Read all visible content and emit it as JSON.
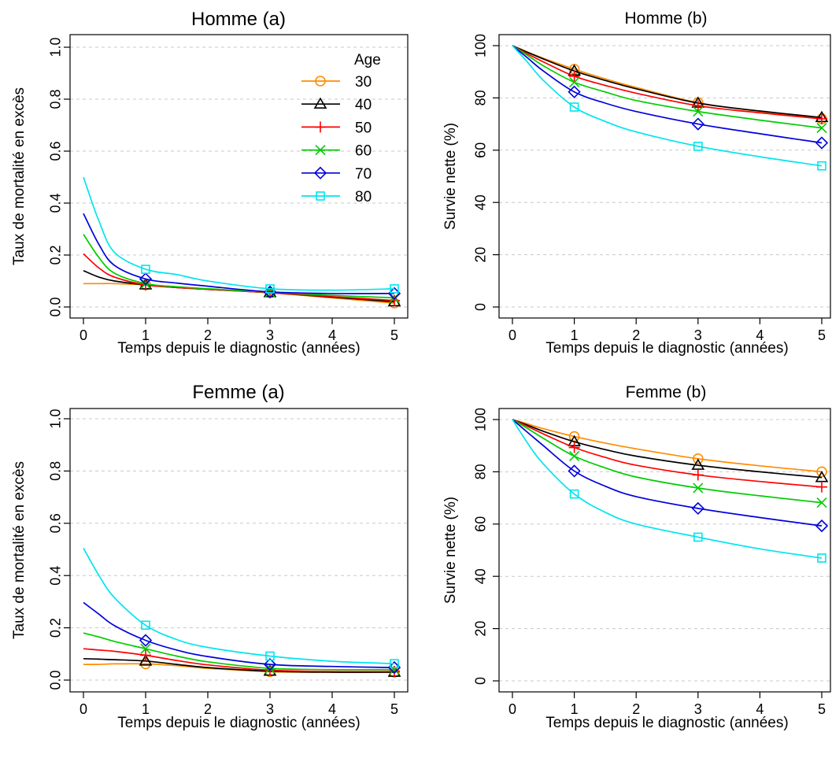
{
  "figure": {
    "legend_title": "Age",
    "legend_placement": "top-right of first panel"
  },
  "series_colors": {
    "30": "#FF8C00",
    "40": "#000000",
    "50": "#FF0000",
    "60": "#00CC00",
    "70": "#0000DD",
    "80": "#00E5EE"
  },
  "series_markers": {
    "30": "circle",
    "40": "triangle",
    "50": "plus",
    "60": "cross",
    "70": "diamond",
    "80": "square"
  },
  "chart_data": [
    {
      "type": "line",
      "title": "Homme (a)",
      "xlabel": "Temps depuis le diagnostic (années)",
      "ylabel": "Taux de mortalité en excès",
      "xlim": [
        0,
        5
      ],
      "ylim": [
        0,
        1
      ],
      "xticks": [
        "0",
        "1",
        "2",
        "3",
        "4",
        "5"
      ],
      "yticks": [
        "0.0",
        "0.2",
        "0.4",
        "0.6",
        "0.8",
        "1.0"
      ],
      "ytick_values": [
        0,
        0.2,
        0.4,
        0.6,
        0.8,
        1.0
      ],
      "grid": "horizontal dashed",
      "legend": true,
      "marker_x": [
        1,
        3,
        5
      ],
      "series": [
        {
          "name": "30",
          "x": [
            0,
            0.25,
            0.5,
            1,
            1.5,
            2,
            3,
            4,
            5
          ],
          "values": [
            0.09,
            0.09,
            0.09,
            0.085,
            0.078,
            0.07,
            0.055,
            0.035,
            0.015
          ]
        },
        {
          "name": "40",
          "x": [
            0,
            0.25,
            0.5,
            1,
            1.5,
            2,
            3,
            4,
            5
          ],
          "values": [
            0.14,
            0.115,
            0.1,
            0.085,
            0.075,
            0.068,
            0.055,
            0.038,
            0.02
          ]
        },
        {
          "name": "50",
          "x": [
            0,
            0.25,
            0.5,
            1,
            1.5,
            2,
            3,
            4,
            5
          ],
          "values": [
            0.205,
            0.15,
            0.115,
            0.085,
            0.075,
            0.068,
            0.055,
            0.04,
            0.025
          ]
        },
        {
          "name": "60",
          "x": [
            0,
            0.25,
            0.5,
            1,
            1.5,
            2,
            3,
            4,
            5
          ],
          "values": [
            0.28,
            0.19,
            0.13,
            0.09,
            0.078,
            0.07,
            0.057,
            0.045,
            0.035
          ]
        },
        {
          "name": "70",
          "x": [
            0,
            0.25,
            0.5,
            1,
            1.5,
            2,
            3,
            4,
            5
          ],
          "values": [
            0.36,
            0.24,
            0.16,
            0.108,
            0.092,
            0.08,
            0.058,
            0.052,
            0.052
          ]
        },
        {
          "name": "80",
          "x": [
            0,
            0.25,
            0.5,
            1,
            1.5,
            2,
            3,
            4,
            5
          ],
          "values": [
            0.5,
            0.33,
            0.21,
            0.145,
            0.125,
            0.1,
            0.07,
            0.065,
            0.07
          ]
        }
      ]
    },
    {
      "type": "line",
      "title": "Homme  (b)",
      "xlabel": "Temps depuis le diagnostic (années)",
      "ylabel": "Survie nette (%)",
      "xlim": [
        0,
        5
      ],
      "ylim": [
        0,
        100
      ],
      "xticks": [
        "0",
        "1",
        "2",
        "3",
        "4",
        "5"
      ],
      "yticks": [
        "0",
        "20",
        "40",
        "60",
        "80",
        "100"
      ],
      "ytick_values": [
        0,
        20,
        40,
        60,
        80,
        100
      ],
      "grid": "horizontal dashed",
      "legend": false,
      "marker_x": [
        1,
        3,
        5
      ],
      "series": [
        {
          "name": "30",
          "x": [
            0,
            0.25,
            0.5,
            1,
            1.5,
            2,
            3,
            4,
            5
          ],
          "values": [
            100,
            97.5,
            95.2,
            91,
            87.3,
            84,
            78.2,
            74.8,
            72
          ]
        },
        {
          "name": "40",
          "x": [
            0,
            0.25,
            0.5,
            1,
            1.5,
            2,
            3,
            4,
            5
          ],
          "values": [
            100,
            97.4,
            94.9,
            90.3,
            86.7,
            83.5,
            78,
            75,
            72.5
          ]
        },
        {
          "name": "50",
          "x": [
            0,
            0.25,
            0.5,
            1,
            1.5,
            2,
            3,
            4,
            5
          ],
          "values": [
            100,
            96.8,
            93.8,
            88.3,
            84.8,
            81.8,
            77,
            74.3,
            72
          ]
        },
        {
          "name": "60",
          "x": [
            0,
            0.25,
            0.5,
            1,
            1.5,
            2,
            3,
            4,
            5
          ],
          "values": [
            100,
            96.2,
            92.3,
            86,
            82.3,
            79,
            74.8,
            71.5,
            68.5
          ]
        },
        {
          "name": "70",
          "x": [
            0,
            0.25,
            0.5,
            1,
            1.5,
            2,
            3,
            4,
            5
          ],
          "values": [
            100,
            95.2,
            90.3,
            82.3,
            78,
            74.8,
            70,
            66.3,
            62.8
          ]
        },
        {
          "name": "80",
          "x": [
            0,
            0.25,
            0.5,
            1,
            1.5,
            2,
            3,
            4,
            5
          ],
          "values": [
            100,
            93.5,
            86.7,
            76.5,
            71,
            67,
            61.5,
            57.5,
            54
          ]
        }
      ]
    },
    {
      "type": "line",
      "title": "Femme (a)",
      "xlabel": "Temps depuis le diagnostic (années)",
      "ylabel": "Taux de mortalité en excès",
      "xlim": [
        0,
        5
      ],
      "ylim": [
        0,
        1
      ],
      "xticks": [
        "0",
        "1",
        "2",
        "3",
        "4",
        "5"
      ],
      "yticks": [
        "0.0",
        "0.2",
        "0.4",
        "0.6",
        "0.8",
        "1.0"
      ],
      "ytick_values": [
        0,
        0.2,
        0.4,
        0.6,
        0.8,
        1.0
      ],
      "grid": "horizontal dashed",
      "legend": false,
      "marker_x": [
        1,
        3,
        5
      ],
      "series": [
        {
          "name": "30",
          "x": [
            0,
            0.25,
            0.5,
            1,
            1.5,
            2,
            3,
            4,
            5
          ],
          "values": [
            0.06,
            0.06,
            0.062,
            0.062,
            0.055,
            0.045,
            0.032,
            0.03,
            0.03
          ]
        },
        {
          "name": "40",
          "x": [
            0,
            0.25,
            0.5,
            1,
            1.5,
            2,
            3,
            4,
            5
          ],
          "values": [
            0.082,
            0.08,
            0.078,
            0.073,
            0.06,
            0.048,
            0.034,
            0.03,
            0.03
          ]
        },
        {
          "name": "50",
          "x": [
            0,
            0.25,
            0.5,
            1,
            1.5,
            2,
            3,
            4,
            5
          ],
          "values": [
            0.12,
            0.115,
            0.11,
            0.095,
            0.075,
            0.058,
            0.038,
            0.033,
            0.033
          ]
        },
        {
          "name": "60",
          "x": [
            0,
            0.25,
            0.5,
            1,
            1.5,
            2,
            3,
            4,
            5
          ],
          "values": [
            0.18,
            0.165,
            0.148,
            0.12,
            0.092,
            0.07,
            0.045,
            0.04,
            0.04
          ]
        },
        {
          "name": "70",
          "x": [
            0,
            0.25,
            0.5,
            1,
            1.5,
            2,
            3,
            4,
            5
          ],
          "values": [
            0.297,
            0.252,
            0.208,
            0.152,
            0.115,
            0.09,
            0.06,
            0.052,
            0.048
          ]
        },
        {
          "name": "80",
          "x": [
            0,
            0.25,
            0.5,
            1,
            1.5,
            2,
            3,
            4,
            5
          ],
          "values": [
            0.505,
            0.4,
            0.315,
            0.21,
            0.155,
            0.125,
            0.092,
            0.072,
            0.063
          ]
        }
      ]
    },
    {
      "type": "line",
      "title": "Femme  (b)",
      "xlabel": "Temps depuis le diagnostic (années)",
      "ylabel": "Survie nette (%)",
      "xlim": [
        0,
        5
      ],
      "ylim": [
        0,
        100
      ],
      "xticks": [
        "0",
        "1",
        "2",
        "3",
        "4",
        "5"
      ],
      "yticks": [
        "0",
        "20",
        "40",
        "60",
        "80",
        "100"
      ],
      "ytick_values": [
        0,
        20,
        40,
        60,
        80,
        100
      ],
      "grid": "horizontal dashed",
      "legend": false,
      "marker_x": [
        1,
        3,
        5
      ],
      "series": [
        {
          "name": "30",
          "x": [
            0,
            0.25,
            0.5,
            1,
            1.5,
            2,
            3,
            4,
            5
          ],
          "values": [
            100,
            98.3,
            96.5,
            93.5,
            91,
            88.8,
            85,
            82.3,
            80
          ]
        },
        {
          "name": "40",
          "x": [
            0,
            0.25,
            0.5,
            1,
            1.5,
            2,
            3,
            4,
            5
          ],
          "values": [
            100,
            97.8,
            95.5,
            91.5,
            88.5,
            86,
            82.5,
            80,
            77.8
          ]
        },
        {
          "name": "50",
          "x": [
            0,
            0.25,
            0.5,
            1,
            1.5,
            2,
            3,
            4,
            5
          ],
          "values": [
            100,
            97.3,
            94.5,
            89.3,
            85.5,
            82.5,
            78.8,
            76.3,
            74.2
          ]
        },
        {
          "name": "60",
          "x": [
            0,
            0.25,
            0.5,
            1,
            1.5,
            2,
            3,
            4,
            5
          ],
          "values": [
            100,
            96.5,
            92.8,
            86,
            81.5,
            78,
            73.8,
            70.8,
            68.2
          ]
        },
        {
          "name": "70",
          "x": [
            0,
            0.25,
            0.5,
            1,
            1.5,
            2,
            3,
            4,
            5
          ],
          "values": [
            100,
            95,
            90,
            80.3,
            74.5,
            70.5,
            66,
            62.5,
            59.3
          ]
        },
        {
          "name": "80",
          "x": [
            0,
            0.25,
            0.5,
            1,
            1.5,
            2,
            3,
            4,
            5
          ],
          "values": [
            100,
            90.8,
            83,
            71.5,
            64.5,
            60,
            55,
            50.5,
            47
          ]
        }
      ]
    }
  ]
}
